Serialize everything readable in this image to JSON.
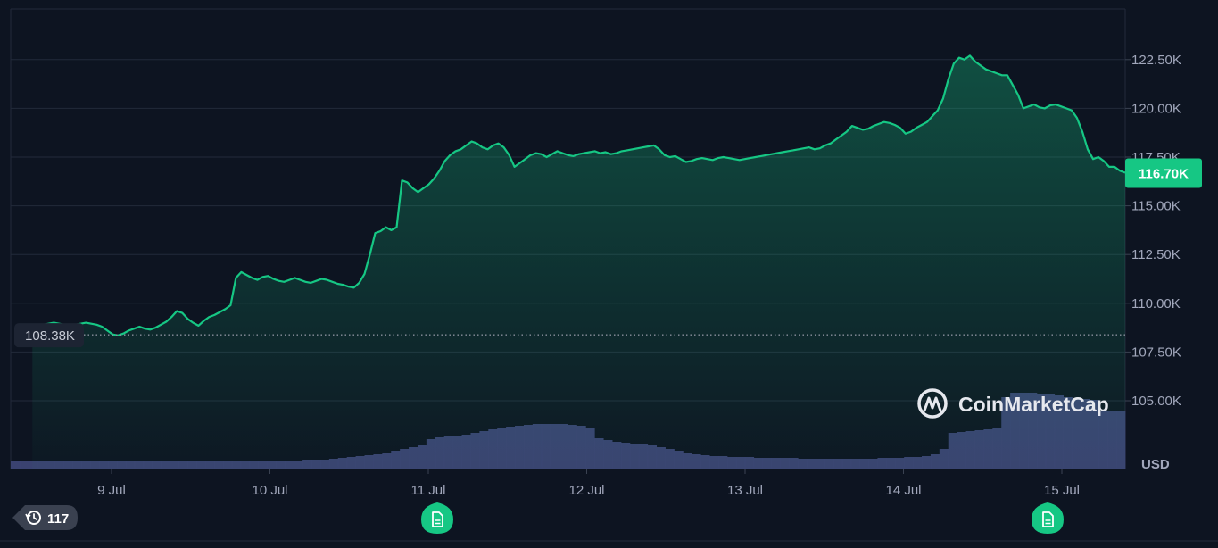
{
  "chart_data": {
    "type": "area",
    "title": "",
    "xlabel": "",
    "ylabel": "",
    "currency": "USD",
    "ylim": [
      102500,
      125000
    ],
    "x_ticks": [
      "9 Jul",
      "10 Jul",
      "11 Jul",
      "12 Jul",
      "13 Jul",
      "14 Jul",
      "15 Jul"
    ],
    "y_ticks": [
      {
        "value": 105000,
        "label": "105.00K"
      },
      {
        "value": 107500,
        "label": "107.50K"
      },
      {
        "value": 110000,
        "label": "110.00K"
      },
      {
        "value": 112500,
        "label": "112.50K"
      },
      {
        "value": 115000,
        "label": "115.00K"
      },
      {
        "value": 117500,
        "label": "117.50K"
      },
      {
        "value": 120000,
        "label": "120.00K"
      },
      {
        "value": 122500,
        "label": "122.50K"
      }
    ],
    "current_price": {
      "value": 116700,
      "label": "116.70K"
    },
    "start_price": {
      "value": 108380,
      "label": "108.38K"
    },
    "grid": true,
    "colors": {
      "line": "#16c784",
      "price_badge": "#16c784",
      "volume": "#3d4475",
      "background": "#0d1421",
      "grid": "#222a3a"
    },
    "series": [
      {
        "x_day_start": 8.5,
        "x_day_end": 15.4,
        "values": [
          108600,
          108750,
          108900,
          108950,
          109000,
          108950,
          108900,
          108850,
          108900,
          108950,
          109000,
          108950,
          108900,
          108800,
          108600,
          108400,
          108350,
          108450,
          108600,
          108700,
          108800,
          108700,
          108650,
          108750,
          108900,
          109050,
          109300,
          109600,
          109500,
          109200,
          109000,
          108850,
          109100,
          109300,
          109400,
          109550,
          109700,
          109900,
          111300,
          111600,
          111450,
          111300,
          111200,
          111350,
          111400,
          111250,
          111150,
          111100,
          111200,
          111300,
          111200,
          111100,
          111050,
          111150,
          111250,
          111200,
          111100,
          111000,
          110950,
          110850,
          110800,
          111050,
          111500,
          112500,
          113600,
          113700,
          113900,
          113750,
          113900,
          116300,
          116200,
          115900,
          115700,
          115900,
          116100,
          116400,
          116800,
          117300,
          117600,
          117800,
          117900,
          118100,
          118300,
          118200,
          118000,
          117900,
          118100,
          118200,
          118000,
          117600,
          117000,
          117200,
          117400,
          117600,
          117700,
          117650,
          117500,
          117650,
          117800,
          117700,
          117600,
          117550,
          117650,
          117700,
          117750,
          117800,
          117700,
          117750,
          117650,
          117700,
          117800,
          117850,
          117900,
          117950,
          118000,
          118050,
          118100,
          117900,
          117600,
          117500,
          117550,
          117400,
          117250,
          117300,
          117400,
          117450,
          117400,
          117350,
          117450,
          117500,
          117450,
          117400,
          117350,
          117400,
          117450,
          117500,
          117550,
          117600,
          117650,
          117700,
          117750,
          117800,
          117850,
          117900,
          117950,
          118000,
          117900,
          117950,
          118100,
          118200,
          118400,
          118600,
          118800,
          119100,
          119000,
          118900,
          118950,
          119100,
          119200,
          119300,
          119250,
          119150,
          119000,
          118700,
          118800,
          119000,
          119150,
          119300,
          119600,
          119900,
          120500,
          121500,
          122300,
          122600,
          122500,
          122700,
          122400,
          122200,
          122000,
          121900,
          121800,
          121700,
          121700,
          121200,
          120700,
          120000,
          120100,
          120200,
          120050,
          120000,
          120150,
          120200,
          120100,
          120000,
          119900,
          119500,
          118800,
          117900,
          117400,
          117500,
          117300,
          117000,
          117000,
          116800,
          116700
        ]
      }
    ],
    "volume_relative": [
      0.09,
      0.09,
      0.09,
      0.09,
      0.09,
      0.09,
      0.09,
      0.09,
      0.09,
      0.09,
      0.09,
      0.09,
      0.09,
      0.09,
      0.09,
      0.09,
      0.09,
      0.09,
      0.09,
      0.09,
      0.09,
      0.09,
      0.09,
      0.09,
      0.09,
      0.09,
      0.09,
      0.09,
      0.09,
      0.09,
      0.09,
      0.09,
      0.09,
      0.1,
      0.1,
      0.1,
      0.11,
      0.12,
      0.13,
      0.14,
      0.15,
      0.16,
      0.18,
      0.2,
      0.22,
      0.24,
      0.26,
      0.33,
      0.35,
      0.36,
      0.37,
      0.38,
      0.4,
      0.42,
      0.44,
      0.46,
      0.47,
      0.48,
      0.49,
      0.5,
      0.5,
      0.5,
      0.5,
      0.49,
      0.48,
      0.45,
      0.34,
      0.32,
      0.3,
      0.29,
      0.28,
      0.27,
      0.26,
      0.24,
      0.22,
      0.2,
      0.18,
      0.16,
      0.15,
      0.14,
      0.14,
      0.13,
      0.13,
      0.13,
      0.12,
      0.12,
      0.12,
      0.12,
      0.12,
      0.11,
      0.11,
      0.11,
      0.11,
      0.11,
      0.11,
      0.11,
      0.11,
      0.11,
      0.12,
      0.12,
      0.12,
      0.13,
      0.13,
      0.14,
      0.16,
      0.22,
      0.4,
      0.41,
      0.42,
      0.43,
      0.44,
      0.45,
      0.8,
      0.85,
      0.85,
      0.85,
      0.84,
      0.83,
      0.82,
      0.8,
      0.78,
      0.78,
      0.77,
      0.65,
      0.64,
      0.64
    ]
  },
  "badges": {
    "history_count": "117"
  },
  "watermark": {
    "brand": "CoinMarketCap"
  }
}
